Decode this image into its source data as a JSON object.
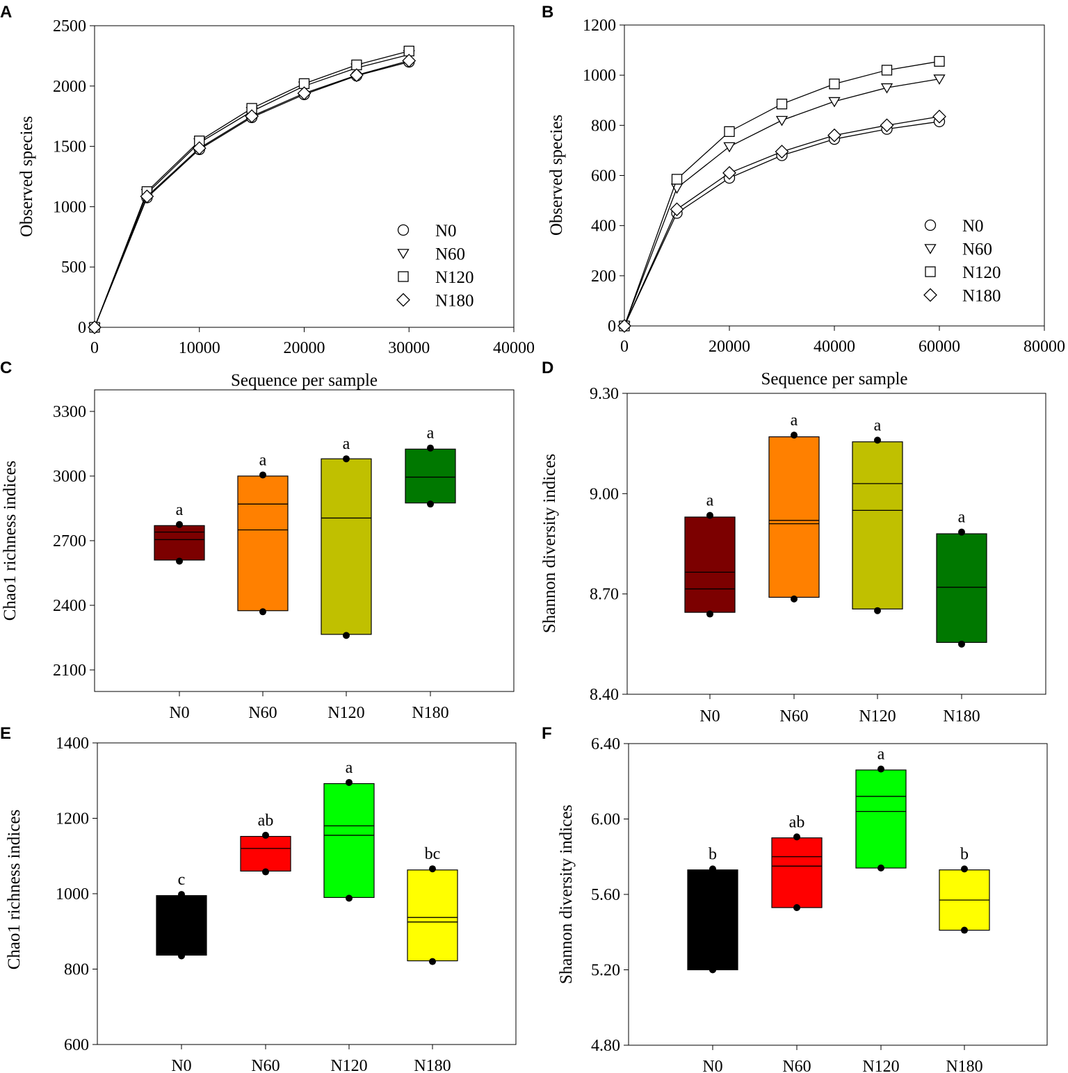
{
  "chart_data": [
    {
      "id": "A",
      "panel_label": "A",
      "type": "line",
      "xlabel": "Sequence per sample",
      "ylabel": "Observed species",
      "xlim": [
        0,
        40000
      ],
      "ylim": [
        0,
        2500
      ],
      "xticks": [
        "0",
        "10000",
        "20000",
        "30000",
        "40000"
      ],
      "yticks": [
        "0",
        "500",
        "1000",
        "1500",
        "2000",
        "2500"
      ],
      "legend_position": "bottom-right",
      "series": [
        {
          "name": "N0",
          "marker": "circle",
          "x": [
            0,
            5000,
            10000,
            15000,
            20000,
            25000,
            30000
          ],
          "y": [
            0,
            1075,
            1475,
            1740,
            1930,
            2085,
            2200
          ]
        },
        {
          "name": "N60",
          "marker": "triangle-down",
          "x": [
            0,
            5000,
            10000,
            15000,
            20000,
            25000,
            30000
          ],
          "y": [
            0,
            1110,
            1530,
            1790,
            2000,
            2150,
            2260
          ]
        },
        {
          "name": "N120",
          "marker": "square",
          "x": [
            0,
            5000,
            10000,
            15000,
            20000,
            25000,
            30000
          ],
          "y": [
            0,
            1125,
            1545,
            1815,
            2020,
            2175,
            2290
          ]
        },
        {
          "name": "N180",
          "marker": "diamond",
          "x": [
            0,
            5000,
            10000,
            15000,
            20000,
            25000,
            30000
          ],
          "y": [
            0,
            1085,
            1485,
            1750,
            1940,
            2090,
            2210
          ]
        }
      ]
    },
    {
      "id": "B",
      "panel_label": "B",
      "type": "line",
      "xlabel": "Sequence per sample",
      "ylabel": "Observed species",
      "xlim": [
        0,
        80000
      ],
      "ylim": [
        0,
        1200
      ],
      "xticks": [
        "0",
        "20000",
        "40000",
        "60000",
        "80000"
      ],
      "yticks": [
        "0",
        "200",
        "400",
        "600",
        "800",
        "1000",
        "1200"
      ],
      "legend_position": "bottom-right",
      "series": [
        {
          "name": "N0",
          "marker": "circle",
          "x": [
            0,
            10000,
            20000,
            30000,
            40000,
            50000,
            60000
          ],
          "y": [
            0,
            450,
            590,
            680,
            745,
            785,
            815
          ]
        },
        {
          "name": "N60",
          "marker": "triangle-down",
          "x": [
            0,
            10000,
            20000,
            30000,
            40000,
            50000,
            60000
          ],
          "y": [
            0,
            550,
            715,
            820,
            895,
            950,
            985
          ]
        },
        {
          "name": "N120",
          "marker": "square",
          "x": [
            0,
            10000,
            20000,
            30000,
            40000,
            50000,
            60000
          ],
          "y": [
            0,
            585,
            775,
            885,
            965,
            1020,
            1055
          ]
        },
        {
          "name": "N180",
          "marker": "diamond",
          "x": [
            0,
            10000,
            20000,
            30000,
            40000,
            50000,
            60000
          ],
          "y": [
            0,
            465,
            610,
            695,
            760,
            800,
            835
          ]
        }
      ]
    },
    {
      "id": "C",
      "panel_label": "C",
      "type": "box",
      "xlabel": "",
      "ylabel": "Chao1 richness indices",
      "ylim": [
        2000,
        3400
      ],
      "yticks": [
        "2100",
        "2400",
        "2700",
        "3000",
        "3300"
      ],
      "categories": [
        "N0",
        "N60",
        "N120",
        "N180"
      ],
      "colors": [
        "#7c0000",
        "#ff8000",
        "#c0c000",
        "#007800"
      ],
      "boxes": [
        {
          "q1": 2610,
          "q3": 2770,
          "medians": [
            2705,
            2740
          ],
          "min": 2605,
          "max": 2775,
          "letter": "a"
        },
        {
          "q1": 2375,
          "q3": 3000,
          "medians": [
            2750,
            2870
          ],
          "min": 2370,
          "max": 3005,
          "letter": "a"
        },
        {
          "q1": 2265,
          "q3": 3080,
          "medians": [
            2805
          ],
          "min": 2260,
          "max": 3080,
          "letter": "a"
        },
        {
          "q1": 2875,
          "q3": 3125,
          "medians": [
            2995
          ],
          "min": 2870,
          "max": 3130,
          "letter": "a"
        }
      ]
    },
    {
      "id": "D",
      "panel_label": "D",
      "type": "box",
      "xlabel": "",
      "ylabel": "Shannon diversity indices",
      "ylim": [
        8.4,
        9.3
      ],
      "yticks": [
        "8.40",
        "8.70",
        "9.00",
        "9.30"
      ],
      "categories": [
        "N0",
        "N60",
        "N120",
        "N180"
      ],
      "colors": [
        "#7c0000",
        "#ff8000",
        "#c0c000",
        "#007800"
      ],
      "boxes": [
        {
          "q1": 8.645,
          "q3": 8.93,
          "medians": [
            8.715,
            8.765
          ],
          "min": 8.64,
          "max": 8.935,
          "letter": "a"
        },
        {
          "q1": 8.69,
          "q3": 9.17,
          "medians": [
            8.91,
            8.92
          ],
          "min": 8.685,
          "max": 9.175,
          "letter": "a"
        },
        {
          "q1": 8.655,
          "q3": 9.155,
          "medians": [
            8.95,
            9.03
          ],
          "min": 8.65,
          "max": 9.16,
          "letter": "a"
        },
        {
          "q1": 8.555,
          "q3": 8.88,
          "medians": [
            8.72
          ],
          "min": 8.55,
          "max": 8.885,
          "letter": "a"
        }
      ]
    },
    {
      "id": "E",
      "panel_label": "E",
      "type": "box",
      "xlabel": "",
      "ylabel": "Chao1 richness indices",
      "ylim": [
        600,
        1400
      ],
      "yticks": [
        "600",
        "800",
        "1000",
        "1200",
        "1400"
      ],
      "categories": [
        "N0",
        "N60",
        "N120",
        "N180"
      ],
      "colors": [
        "#000000",
        "#ff0000",
        "#00ff00",
        "#ffff00"
      ],
      "boxes": [
        {
          "q1": 837,
          "q3": 995,
          "medians": [],
          "min": 835,
          "max": 998,
          "letter": "c"
        },
        {
          "q1": 1060,
          "q3": 1152,
          "medians": [
            1120
          ],
          "min": 1058,
          "max": 1155,
          "letter": "ab"
        },
        {
          "q1": 990,
          "q3": 1292,
          "medians": [
            1155,
            1180
          ],
          "min": 988,
          "max": 1295,
          "letter": "a"
        },
        {
          "q1": 822,
          "q3": 1063,
          "medians": [
            925,
            937
          ],
          "min": 820,
          "max": 1066,
          "letter": "bc"
        }
      ]
    },
    {
      "id": "F",
      "panel_label": "F",
      "type": "box",
      "xlabel": "",
      "ylabel": "Shannon diversity indices",
      "ylim": [
        4.8,
        6.4
      ],
      "yticks": [
        "4.80",
        "5.20",
        "5.60",
        "6.00",
        "6.40"
      ],
      "categories": [
        "N0",
        "N60",
        "N120",
        "N180"
      ],
      "colors": [
        "#000000",
        "#ff0000",
        "#00ff00",
        "#ffff00"
      ],
      "boxes": [
        {
          "q1": 5.2,
          "q3": 5.73,
          "medians": [],
          "min": 5.2,
          "max": 5.735,
          "letter": "b"
        },
        {
          "q1": 5.53,
          "q3": 5.9,
          "medians": [
            5.75,
            5.8
          ],
          "min": 5.53,
          "max": 5.905,
          "letter": "ab"
        },
        {
          "q1": 5.74,
          "q3": 6.26,
          "medians": [
            6.04,
            6.12
          ],
          "min": 5.74,
          "max": 6.265,
          "letter": "a"
        },
        {
          "q1": 5.41,
          "q3": 5.73,
          "medians": [
            5.57
          ],
          "min": 5.41,
          "max": 5.735,
          "letter": "b"
        }
      ]
    }
  ]
}
